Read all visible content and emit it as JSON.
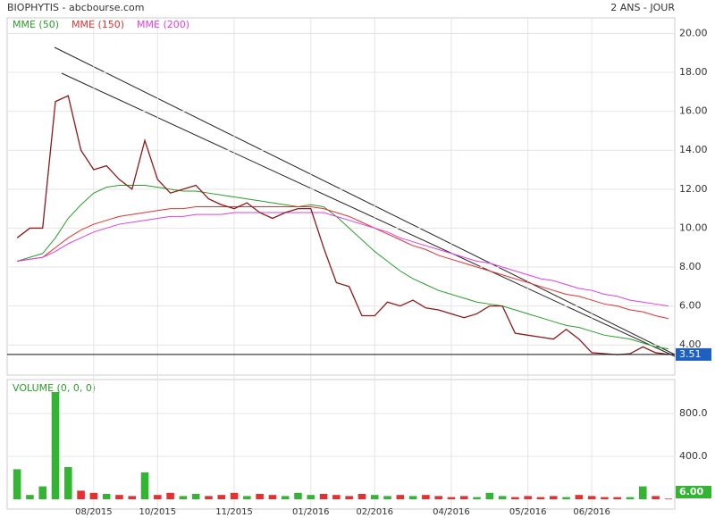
{
  "chart_data": [
    {
      "type": "line",
      "title": "BIOPHYTIS - abcbourse.com",
      "period": "2 ANS - JOUR",
      "categories": [
        null,
        null,
        null,
        null,
        null,
        null,
        "08/2015",
        null,
        null,
        null,
        null,
        "10/2015",
        null,
        null,
        null,
        null,
        null,
        "11/2015",
        null,
        null,
        null,
        null,
        null,
        "01/2016",
        null,
        null,
        null,
        null,
        "02/2016",
        null,
        null,
        null,
        null,
        null,
        "04/2016",
        null,
        null,
        null,
        null,
        null,
        "05/2016",
        null,
        null,
        null,
        null,
        "06/2016",
        null,
        null,
        null,
        null,
        null,
        null
      ],
      "values": [
        9.5,
        10.0,
        10.0,
        16.5,
        16.8,
        14.0,
        13.0,
        13.2,
        12.5,
        12.0,
        14.5,
        12.5,
        11.8,
        12.0,
        12.2,
        11.5,
        11.2,
        11.0,
        11.3,
        10.8,
        10.5,
        10.8,
        11.0,
        11.0,
        9.0,
        7.2,
        7.0,
        5.5,
        5.5,
        6.2,
        6.0,
        6.3,
        5.9,
        5.8,
        5.6,
        5.4,
        5.6,
        6.0,
        6.0,
        4.6,
        4.5,
        4.4,
        4.3,
        4.8,
        4.3,
        3.6,
        3.55,
        3.5,
        3.55,
        3.9,
        3.6,
        3.51
      ],
      "color": "#8b1a1a",
      "series": [
        {
          "name": "MME (50)",
          "color": "#2a9d2a",
          "values": [
            8.3,
            8.5,
            8.7,
            9.5,
            10.5,
            11.2,
            11.8,
            12.1,
            12.2,
            12.2,
            12.2,
            12.1,
            12.0,
            11.9,
            11.9,
            11.8,
            11.7,
            11.6,
            11.5,
            11.4,
            11.3,
            11.2,
            11.1,
            11.2,
            11.1,
            10.6,
            10.0,
            9.4,
            8.8,
            8.3,
            7.8,
            7.4,
            7.1,
            6.8,
            6.6,
            6.4,
            6.2,
            6.1,
            6.0,
            5.8,
            5.6,
            5.4,
            5.2,
            5.0,
            4.9,
            4.7,
            4.5,
            4.4,
            4.3,
            4.1,
            3.9,
            3.8
          ]
        },
        {
          "name": "MME (150)",
          "color": "#e53030",
          "values": [
            8.3,
            8.4,
            8.5,
            9.0,
            9.5,
            9.9,
            10.2,
            10.4,
            10.6,
            10.7,
            10.8,
            10.9,
            11.0,
            11.0,
            11.1,
            11.1,
            11.1,
            11.1,
            11.1,
            11.1,
            11.1,
            11.1,
            11.1,
            11.1,
            11.0,
            10.8,
            10.6,
            10.3,
            10.0,
            9.7,
            9.4,
            9.1,
            8.9,
            8.6,
            8.4,
            8.2,
            8.0,
            7.8,
            7.6,
            7.4,
            7.2,
            7.0,
            6.8,
            6.6,
            6.5,
            6.3,
            6.1,
            6.0,
            5.8,
            5.7,
            5.5,
            5.35
          ]
        },
        {
          "name": "MME (200)",
          "color": "#e040e0",
          "values": [
            8.3,
            8.4,
            8.5,
            8.8,
            9.2,
            9.5,
            9.8,
            10.0,
            10.2,
            10.3,
            10.4,
            10.5,
            10.6,
            10.6,
            10.7,
            10.7,
            10.7,
            10.8,
            10.8,
            10.8,
            10.8,
            10.8,
            10.8,
            10.8,
            10.8,
            10.6,
            10.4,
            10.2,
            10.0,
            9.8,
            9.5,
            9.3,
            9.1,
            8.9,
            8.7,
            8.5,
            8.3,
            8.2,
            8.0,
            7.8,
            7.6,
            7.4,
            7.3,
            7.1,
            6.9,
            6.8,
            6.6,
            6.5,
            6.3,
            6.2,
            6.1,
            6.0
          ]
        }
      ],
      "ylim": [
        2.45,
        20.8
      ],
      "yticks": [
        {
          "value": 4,
          "label": "4.00"
        },
        {
          "value": 6,
          "label": "6.00"
        },
        {
          "value": 8,
          "label": "8.00"
        },
        {
          "value": 10,
          "label": "10.00"
        },
        {
          "value": 12,
          "label": "12.00"
        },
        {
          "value": 14,
          "label": "14.00"
        },
        {
          "value": 16,
          "label": "16.00"
        },
        {
          "value": 18,
          "label": "18.00"
        },
        {
          "value": 20,
          "label": "20.00"
        }
      ],
      "grid": true
    },
    {
      "type": "bar",
      "title": "VOLUME (0, 0, 0)",
      "values": [
        280,
        40,
        120,
        1000,
        300,
        80,
        60,
        50,
        40,
        30,
        250,
        40,
        60,
        30,
        50,
        30,
        40,
        60,
        30,
        50,
        40,
        30,
        60,
        40,
        50,
        40,
        30,
        50,
        40,
        30,
        40,
        30,
        40,
        30,
        20,
        30,
        20,
        60,
        30,
        20,
        30,
        20,
        30,
        20,
        40,
        30,
        20,
        20,
        20,
        120,
        30,
        6
      ],
      "value_labels": [
        null,
        null,
        null,
        null,
        null,
        null,
        null,
        null,
        null,
        null,
        null,
        null,
        null,
        null,
        null,
        null,
        null,
        null,
        null,
        null,
        null,
        null,
        null,
        null,
        null,
        null,
        null,
        null,
        null,
        null,
        null,
        null,
        null,
        null,
        null,
        null,
        null,
        null,
        null,
        null,
        null,
        null,
        null,
        null,
        null,
        null,
        null,
        null,
        null,
        null,
        null,
        "6.00"
      ],
      "up_color": "#33b533",
      "down_color": "#e53030",
      "ylim": [
        0,
        1100
      ],
      "yticks": [
        {
          "value": 400,
          "label": "400.0"
        },
        {
          "value": 800,
          "label": "800.0"
        }
      ],
      "grid": true
    }
  ]
}
